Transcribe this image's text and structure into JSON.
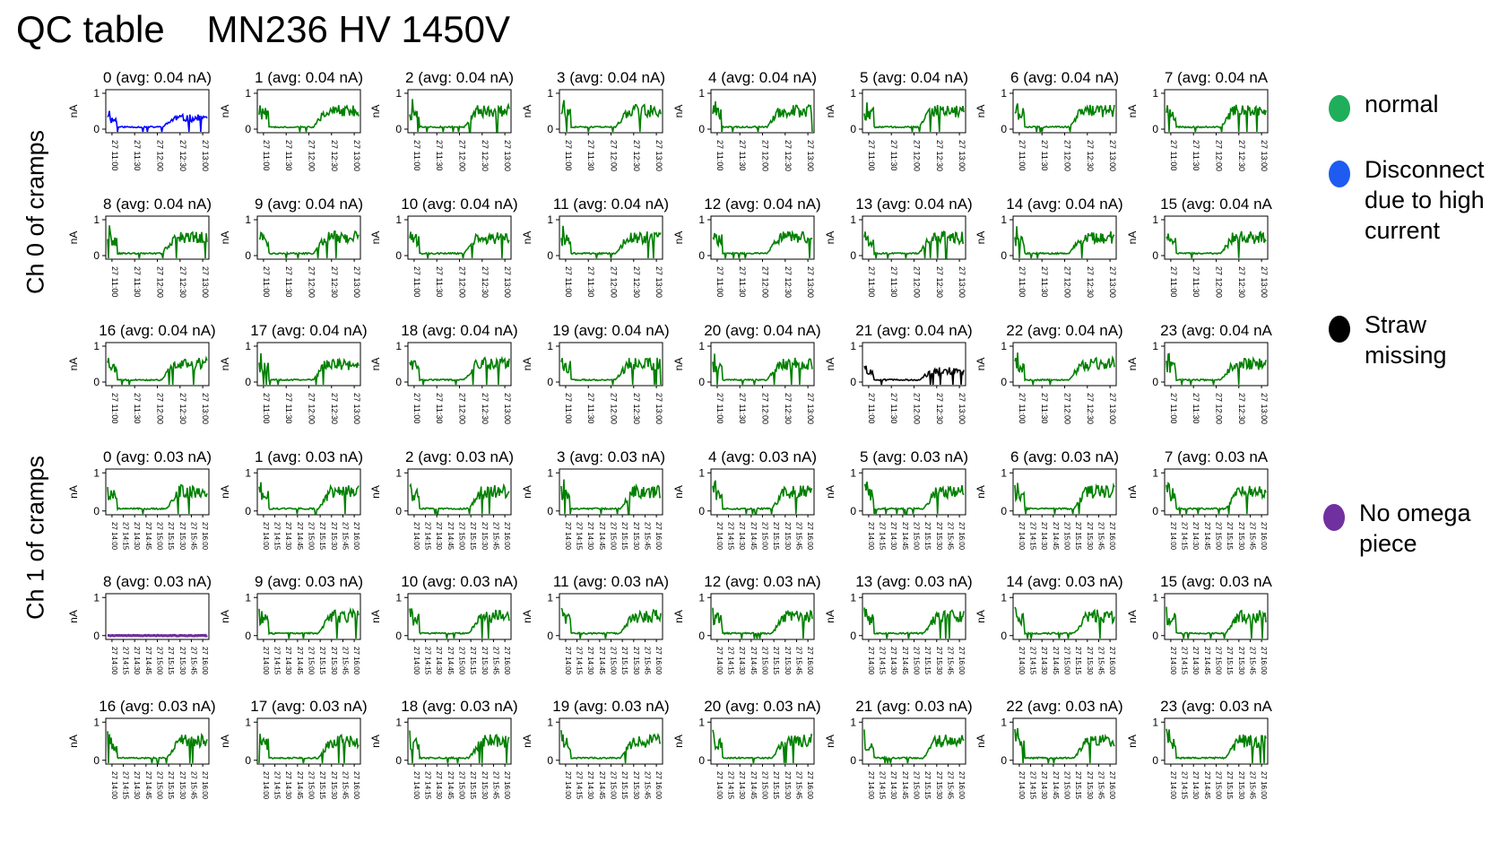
{
  "header": {
    "title": "QC table",
    "subtitle": "MN236 HV 1450V"
  },
  "groups": [
    {
      "label": "Ch 0 of cramps"
    },
    {
      "label": "Ch 1 of cramps"
    }
  ],
  "legend": [
    {
      "label": "normal",
      "color": "#1fae5a"
    },
    {
      "label": "Disconnect due to high current",
      "color": "#1e5bf0"
    },
    {
      "label": "Straw missing",
      "color": "#000000"
    },
    {
      "label": "No omega piece",
      "color": "#7030a0"
    }
  ],
  "chart_data": [
    {
      "type": "line",
      "group": "Ch 0 of cramps",
      "ylabel": "nA",
      "yticks": [
        "0",
        "1"
      ],
      "ylim": [
        -0.1,
        1.1
      ],
      "xticks": [
        "27 11:00",
        "27 11:30",
        "27 12:00",
        "27 12:30",
        "27 13:00"
      ],
      "panels": [
        {
          "title": "0 (avg: 0.04 nA)",
          "status": "Disconnect due to high current",
          "color": "#0000ff"
        },
        {
          "title": "1 (avg: 0.04 nA)",
          "status": "normal",
          "color": "#008000"
        },
        {
          "title": "2 (avg: 0.04 nA)",
          "status": "normal",
          "color": "#008000"
        },
        {
          "title": "3 (avg: 0.04 nA)",
          "status": "normal",
          "color": "#008000"
        },
        {
          "title": "4 (avg: 0.04 nA)",
          "status": "normal",
          "color": "#008000"
        },
        {
          "title": "5 (avg: 0.04 nA)",
          "status": "normal",
          "color": "#008000"
        },
        {
          "title": "6 (avg: 0.04 nA)",
          "status": "normal",
          "color": "#008000"
        },
        {
          "title": "7 (avg: 0.04 nA",
          "status": "normal",
          "color": "#008000"
        },
        {
          "title": "8 (avg: 0.04 nA)",
          "status": "normal",
          "color": "#008000"
        },
        {
          "title": "9 (avg: 0.04 nA)",
          "status": "normal",
          "color": "#008000"
        },
        {
          "title": "10 (avg: 0.04 nA)",
          "status": "normal",
          "color": "#008000"
        },
        {
          "title": "11 (avg: 0.04 nA)",
          "status": "normal",
          "color": "#008000"
        },
        {
          "title": "12 (avg: 0.04 nA)",
          "status": "normal",
          "color": "#008000"
        },
        {
          "title": "13 (avg: 0.04 nA)",
          "status": "normal",
          "color": "#008000"
        },
        {
          "title": "14 (avg: 0.04 nA)",
          "status": "normal",
          "color": "#008000"
        },
        {
          "title": "15 (avg: 0.04 nA",
          "status": "normal",
          "color": "#008000"
        },
        {
          "title": "16 (avg: 0.04 nA)",
          "status": "normal",
          "color": "#008000"
        },
        {
          "title": "17 (avg: 0.04 nA)",
          "status": "normal",
          "color": "#008000"
        },
        {
          "title": "18 (avg: 0.04 nA)",
          "status": "normal",
          "color": "#008000"
        },
        {
          "title": "19 (avg: 0.04 nA)",
          "status": "normal",
          "color": "#008000"
        },
        {
          "title": "20 (avg: 0.04 nA)",
          "status": "normal",
          "color": "#008000"
        },
        {
          "title": "21 (avg: 0.04 nA)",
          "status": "Straw missing",
          "color": "#000000"
        },
        {
          "title": "22 (avg: 0.04 nA)",
          "status": "normal",
          "color": "#008000"
        },
        {
          "title": "23 (avg: 0.04 nA",
          "status": "normal",
          "color": "#008000"
        }
      ]
    },
    {
      "type": "line",
      "group": "Ch 1 of cramps",
      "ylabel": "nA",
      "yticks": [
        "0",
        "1"
      ],
      "ylim": [
        -0.1,
        1.1
      ],
      "xticks": [
        "27 14:00",
        "27 14:15",
        "27 14:30",
        "27 14:45",
        "27 15:00",
        "27 15:15",
        "27 15:30",
        "27 15:45",
        "27 16:00"
      ],
      "panels": [
        {
          "title": "0 (avg: 0.03 nA)",
          "status": "normal",
          "color": "#008000"
        },
        {
          "title": "1 (avg: 0.03 nA)",
          "status": "normal",
          "color": "#008000"
        },
        {
          "title": "2 (avg: 0.03 nA)",
          "status": "normal",
          "color": "#008000"
        },
        {
          "title": "3 (avg: 0.03 nA)",
          "status": "normal",
          "color": "#008000"
        },
        {
          "title": "4 (avg: 0.03 nA)",
          "status": "normal",
          "color": "#008000"
        },
        {
          "title": "5 (avg: 0.03 nA)",
          "status": "normal",
          "color": "#008000"
        },
        {
          "title": "6 (avg: 0.03 nA)",
          "status": "normal",
          "color": "#008000"
        },
        {
          "title": "7 (avg: 0.03 nA",
          "status": "normal",
          "color": "#008000"
        },
        {
          "title": "8 (avg: 0.03 nA)",
          "status": "No omega piece",
          "color": "#7030a0"
        },
        {
          "title": "9 (avg: 0.03 nA)",
          "status": "normal",
          "color": "#008000"
        },
        {
          "title": "10 (avg: 0.03 nA)",
          "status": "normal",
          "color": "#008000"
        },
        {
          "title": "11 (avg: 0.03 nA)",
          "status": "normal",
          "color": "#008000"
        },
        {
          "title": "12 (avg: 0.03 nA)",
          "status": "normal",
          "color": "#008000"
        },
        {
          "title": "13 (avg: 0.03 nA)",
          "status": "normal",
          "color": "#008000"
        },
        {
          "title": "14 (avg: 0.03 nA)",
          "status": "normal",
          "color": "#008000"
        },
        {
          "title": "15 (avg: 0.03 nA",
          "status": "normal",
          "color": "#008000"
        },
        {
          "title": "16 (avg: 0.03 nA)",
          "status": "normal",
          "color": "#008000"
        },
        {
          "title": "17 (avg: 0.03 nA)",
          "status": "normal",
          "color": "#008000"
        },
        {
          "title": "18 (avg: 0.03 nA)",
          "status": "normal",
          "color": "#008000"
        },
        {
          "title": "19 (avg: 0.03 nA)",
          "status": "normal",
          "color": "#008000"
        },
        {
          "title": "20 (avg: 0.03 nA)",
          "status": "normal",
          "color": "#008000"
        },
        {
          "title": "21 (avg: 0.03 nA)",
          "status": "normal",
          "color": "#008000"
        },
        {
          "title": "22 (avg: 0.03 nA)",
          "status": "normal",
          "color": "#008000"
        },
        {
          "title": "23 (avg: 0.03 nA",
          "status": "normal",
          "color": "#008000"
        }
      ]
    }
  ]
}
